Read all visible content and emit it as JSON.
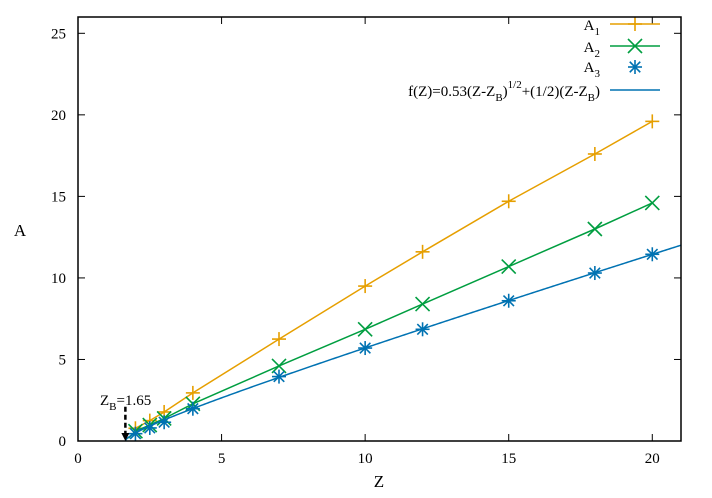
{
  "chart_data": {
    "type": "line",
    "xlabel": "Z",
    "ylabel": "A",
    "xlim": [
      0,
      21
    ],
    "ylim": [
      0,
      26
    ],
    "xticks": [
      0,
      5,
      10,
      15,
      20
    ],
    "yticks": [
      0,
      5,
      10,
      15,
      20,
      25
    ],
    "legend_position": "top-right",
    "grid": false,
    "series": [
      {
        "name": "A",
        "name_sub": "1",
        "color": "#e69f00",
        "marker": "plus",
        "line": true,
        "x": [
          2,
          2.5,
          3,
          4,
          7,
          10,
          12,
          15,
          18,
          20
        ],
        "y": [
          0.78,
          1.25,
          1.78,
          2.95,
          6.25,
          9.5,
          11.6,
          14.7,
          17.6,
          19.6
        ]
      },
      {
        "name": "A",
        "name_sub": "2",
        "color": "#009e40",
        "marker": "cross",
        "line": true,
        "x": [
          2,
          2.5,
          3,
          4,
          7,
          10,
          12,
          15,
          18,
          20
        ],
        "y": [
          0.6,
          0.98,
          1.38,
          2.28,
          4.6,
          6.85,
          8.4,
          10.7,
          13.0,
          14.6
        ]
      },
      {
        "name": "A",
        "name_sub": "3",
        "color": "#0072b2",
        "marker": "star",
        "line": false,
        "x": [
          2,
          2.5,
          3,
          4,
          7,
          10,
          12,
          15,
          18,
          20
        ],
        "y": [
          0.45,
          0.8,
          1.15,
          1.98,
          3.95,
          5.7,
          6.85,
          8.6,
          10.3,
          11.45
        ]
      },
      {
        "name": "f(Z)=0.53(Z-Z_B)^{1/2}+(1/2)(Z-Z_B)",
        "color": "#0072b2",
        "marker": "none",
        "line": true,
        "function": {
          "a": 0.53,
          "b": 0.5,
          "z0": 1.65
        }
      }
    ],
    "legend_f_parts": [
      "f(Z)=0.53(Z-Z",
      "B",
      ")",
      "1/2",
      "+(1/2)(Z-Z",
      "B",
      ")"
    ],
    "annotation": {
      "label_main": "Z",
      "label_sub": "B",
      "label_value": "=1.65",
      "x": 1.65,
      "y_from": 2.1,
      "y_to": 0
    }
  }
}
